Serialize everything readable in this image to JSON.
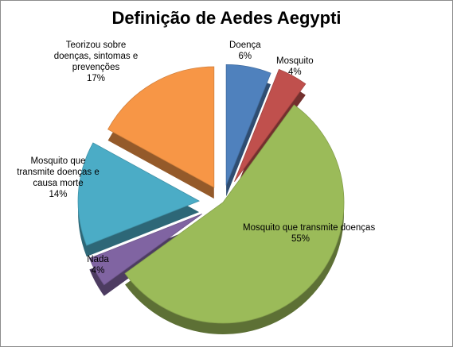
{
  "chart_data": {
    "type": "pie",
    "title": "Definição de Aedes Aegypti",
    "slices": [
      {
        "label": "Doença",
        "value": 6,
        "value_label": "6%",
        "color": "#4f81bd"
      },
      {
        "label": "Mosquito",
        "value": 4,
        "value_label": "4%",
        "color": "#c0504d"
      },
      {
        "label": "Mosquito que transmite doenças",
        "value": 55,
        "value_label": "55%",
        "color": "#9bbb59"
      },
      {
        "label": "Nada",
        "value": 4,
        "value_label": "4%",
        "color": "#8064a2"
      },
      {
        "label": "Mosquito que transmite doenças e causa morte",
        "value": 14,
        "value_label": "14%",
        "color": "#4bacc6"
      },
      {
        "label": "Teorizou sobre doenças, sintomas e prevenções",
        "value": 17,
        "value_label": "17%",
        "color": "#f79646"
      }
    ],
    "legend": "none",
    "style": "3d-exploded"
  }
}
